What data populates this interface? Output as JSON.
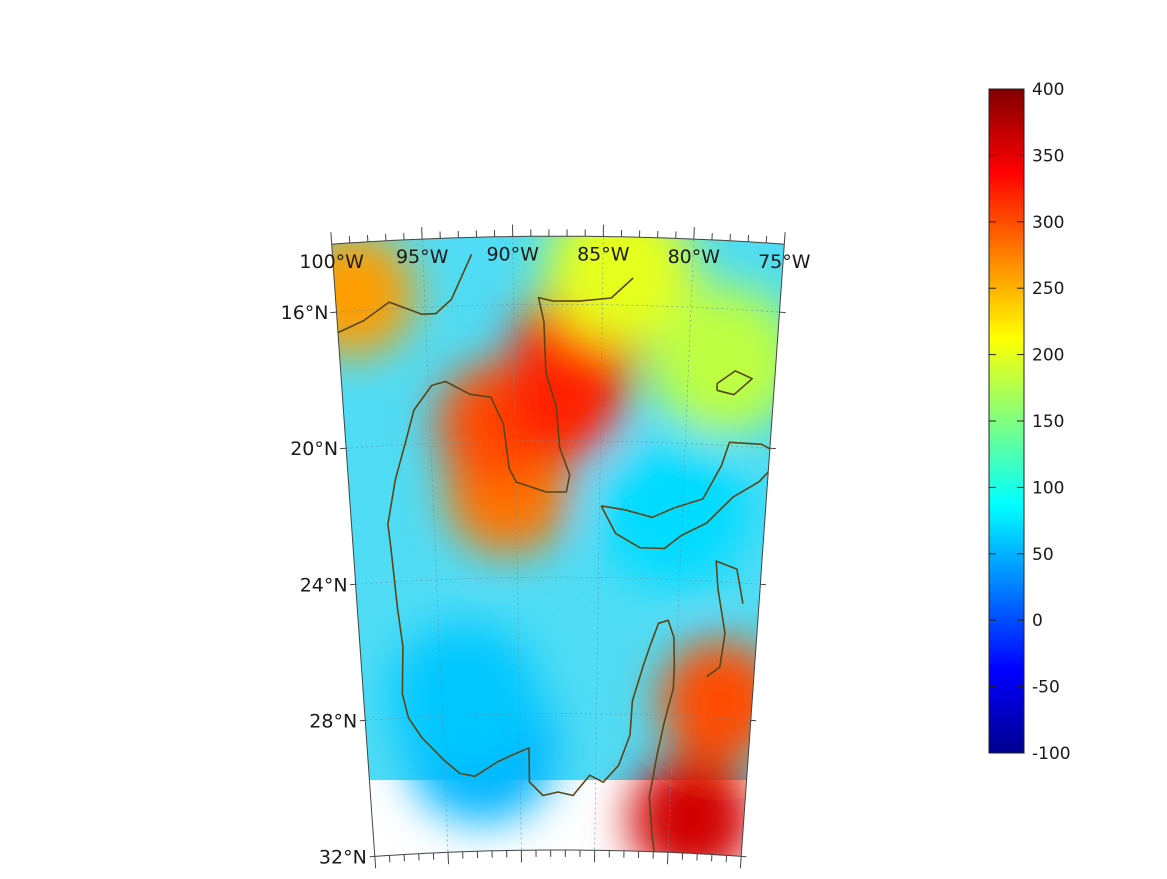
{
  "map": {
    "projection": "conic",
    "lon_range": [
      -100,
      -75
    ],
    "lat_range": [
      14,
      32
    ],
    "grid": true,
    "coastline_color": "#5b4515",
    "lon_labels": [
      "100°W",
      "95°W",
      "90°W",
      "85°W",
      "80°W",
      "75°W"
    ],
    "lat_labels": [
      "32°N",
      "28°N",
      "24°N",
      "20°N",
      "16°N"
    ],
    "field_features": [
      {
        "name": "high",
        "lon": -78.5,
        "lat": 31.0,
        "value": 360
      },
      {
        "name": "high",
        "lon": -77.0,
        "lat": 27.5,
        "value": 300
      },
      {
        "name": "high",
        "lon": -90.5,
        "lat": 21.5,
        "value": 280
      },
      {
        "name": "high",
        "lon": -91.0,
        "lat": 19.5,
        "value": 300
      },
      {
        "name": "high",
        "lon": -86.5,
        "lat": 17.3,
        "value": 320
      },
      {
        "name": "high",
        "lon": -87.3,
        "lat": 18.8,
        "value": 320
      },
      {
        "name": "high",
        "lon": -99.0,
        "lat": 15.5,
        "value": 260
      },
      {
        "name": "moderate",
        "lon": -84.0,
        "lat": 15.0,
        "value": 200
      },
      {
        "name": "moderate",
        "lon": -78.0,
        "lat": 17.5,
        "value": 180
      },
      {
        "name": "low",
        "lon": -92.5,
        "lat": 29.0,
        "value": 50
      },
      {
        "name": "low",
        "lon": -93.5,
        "lat": 27.5,
        "value": 60
      },
      {
        "name": "low",
        "lon": -80.5,
        "lat": 22.0,
        "value": 70
      }
    ]
  },
  "colorbar": {
    "min": -100,
    "max": 400,
    "colormap": "jet",
    "tick_labels": [
      "400",
      "350",
      "300",
      "250",
      "200",
      "150",
      "100",
      "50",
      "0",
      "-50",
      "-100"
    ]
  }
}
